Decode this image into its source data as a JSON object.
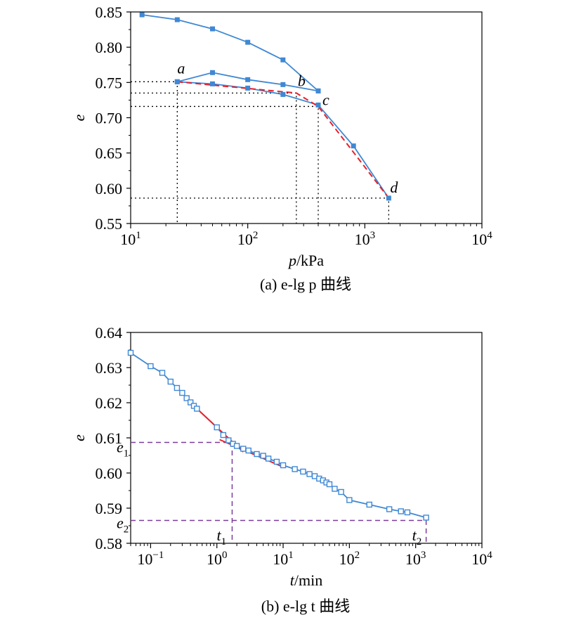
{
  "figure": {
    "caption_a": "(a) e-lg p 曲线",
    "caption_b": "(b) e-lg t 曲线"
  },
  "chart_data": [
    {
      "type": "line",
      "panel": "a",
      "caption": "(a) e-lg p 曲线",
      "xlabel": "p/kPa",
      "ylabel": "e",
      "xscale": "log",
      "xlim": [
        10,
        10000
      ],
      "ylim": [
        0.55,
        0.85
      ],
      "x_ticks": [
        10,
        100,
        1000,
        10000
      ],
      "x_tick_labels": [
        "10^1",
        "10^2",
        "10^3",
        "10^4"
      ],
      "y_ticks": [
        0.55,
        0.6,
        0.65,
        0.7,
        0.75,
        0.8,
        0.85
      ],
      "y_tick_labels": [
        "0.55",
        "0.60",
        "0.65",
        "0.70",
        "0.75",
        "0.80",
        "0.85"
      ],
      "grid": false,
      "colors": {
        "series": "#3f88d4",
        "tangent": "#e8202a",
        "guide": "#000000"
      },
      "series": [
        {
          "x": [
            12.5,
            25,
            50,
            100,
            200,
            400
          ],
          "y": [
            0.846,
            0.839,
            0.826,
            0.807,
            0.782,
            0.738
          ]
        },
        {
          "x": [
            400,
            200,
            100,
            50,
            25
          ],
          "y": [
            0.738,
            0.747,
            0.754,
            0.764,
            0.751
          ]
        },
        {
          "x": [
            25,
            50,
            100,
            200,
            400,
            800,
            1600
          ],
          "y": [
            0.751,
            0.748,
            0.742,
            0.733,
            0.718,
            0.66,
            0.586
          ]
        }
      ],
      "dashed_fit": {
        "x": [
          25,
          260,
          400,
          1600
        ],
        "y": [
          0.751,
          0.735,
          0.716,
          0.586
        ]
      },
      "annotations": [
        {
          "label": "a",
          "x": 25,
          "y": 0.751
        },
        {
          "label": "b",
          "x": 260,
          "y": 0.735
        },
        {
          "label": "c",
          "x": 400,
          "y": 0.716
        },
        {
          "label": "d",
          "x": 1600,
          "y": 0.586
        }
      ]
    },
    {
      "type": "line",
      "panel": "b",
      "caption": "(b) e-lg t 曲线",
      "xlabel": "t/min",
      "ylabel": "e",
      "xscale": "log",
      "xlim": [
        0.05,
        10000
      ],
      "ylim": [
        0.58,
        0.64
      ],
      "x_ticks": [
        0.1,
        1,
        10,
        100,
        1000,
        10000
      ],
      "x_tick_labels": [
        "10^-1",
        "10^0",
        "10^1",
        "10^2",
        "10^3",
        "10^4"
      ],
      "y_ticks": [
        0.58,
        0.59,
        0.6,
        0.61,
        0.62,
        0.63,
        0.64
      ],
      "y_tick_labels": [
        "0.58",
        "0.59",
        "0.60",
        "0.61",
        "0.62",
        "0.63",
        "0.64"
      ],
      "grid": false,
      "colors": {
        "series": "#3f88d4",
        "tangent": "#e8202a",
        "guide": "#7a3b9e"
      },
      "series": [
        {
          "x": [
            0.05,
            0.1,
            0.15,
            0.2,
            0.25,
            0.3,
            0.35,
            0.4,
            0.45,
            0.5,
            1,
            1.25,
            1.5,
            1.75,
            2,
            2.5,
            3,
            4,
            5,
            6,
            8,
            10,
            15,
            20,
            25,
            30,
            35,
            40,
            45,
            50,
            60,
            75,
            100,
            200,
            400,
            600,
            750,
            1440
          ],
          "y": [
            0.6342,
            0.6304,
            0.6285,
            0.626,
            0.6242,
            0.6228,
            0.6213,
            0.6201,
            0.6191,
            0.6183,
            0.613,
            0.6108,
            0.6093,
            0.6083,
            0.6077,
            0.6069,
            0.6064,
            0.6054,
            0.6049,
            0.6041,
            0.6032,
            0.6022,
            0.6011,
            0.6004,
            0.5997,
            0.5991,
            0.5984,
            0.5979,
            0.5973,
            0.5968,
            0.5955,
            0.5946,
            0.5923,
            0.591,
            0.5897,
            0.5891,
            0.5888,
            0.5873
          ]
        }
      ],
      "tangent_lines": [
        {
          "x": [
            0.5,
            2.5
          ],
          "y": [
            0.6183,
            0.606
          ]
        },
        {
          "x": [
            1.1,
            10
          ],
          "y": [
            0.6095,
            0.6017
          ]
        }
      ],
      "guides": {
        "e1": 0.6087,
        "t1": 1.7,
        "e2": 0.5865,
        "t2": 1440
      },
      "annotations": [
        {
          "label": "e1",
          "main": "e",
          "sub": "1"
        },
        {
          "label": "e2",
          "main": "e",
          "sub": "2"
        },
        {
          "label": "t1",
          "main": "t",
          "sub": "1"
        },
        {
          "label": "t2",
          "main": "t",
          "sub": "2"
        }
      ]
    }
  ]
}
